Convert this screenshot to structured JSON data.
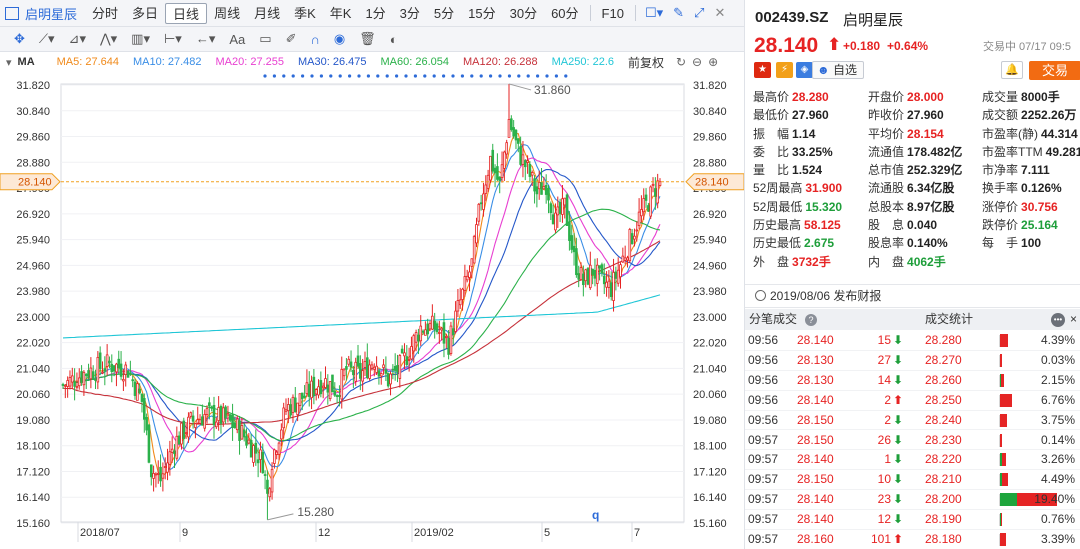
{
  "toolbar": {
    "stock_name": "启明星辰",
    "periods": [
      "分时",
      "多日",
      "日线",
      "周线",
      "月线",
      "季K",
      "年K",
      "1分",
      "3分",
      "5分",
      "15分",
      "30分",
      "60分"
    ],
    "active_period": "日线",
    "f10": "F10",
    "draw_tools": [
      "十字",
      "线段",
      "画线",
      "折线",
      "形态",
      "区间",
      "撤销",
      "Aa",
      "注释",
      "笔",
      "磁铁",
      "显示",
      "删除",
      "开关"
    ]
  },
  "ma_legend": {
    "label": "MA",
    "items": [
      {
        "text": "MA5: 27.644",
        "color": "#f08a1b"
      },
      {
        "text": "MA10: 27.482",
        "color": "#3a8ee6"
      },
      {
        "text": "MA20: 27.255",
        "color": "#e83fd1"
      },
      {
        "text": "MA30: 26.475",
        "color": "#2457c9"
      },
      {
        "text": "MA60: 26.054",
        "color": "#2bb14a"
      },
      {
        "text": "MA120: 26.288",
        "color": "#c6313a"
      },
      {
        "text": "MA250: 22.6",
        "color": "#21c6d6"
      }
    ],
    "adjust": "前复权"
  },
  "chart_data": {
    "type": "candlestick",
    "y_ticks": [
      "31.820",
      "30.840",
      "29.860",
      "28.880",
      "27.900",
      "26.920",
      "25.940",
      "24.960",
      "23.980",
      "23.000",
      "22.020",
      "21.040",
      "20.060",
      "19.080",
      "18.100",
      "17.120",
      "16.140",
      "15.160"
    ],
    "ylim": [
      15.16,
      31.82
    ],
    "x_labels": [
      "2018/07",
      "9",
      "12",
      "2019/02",
      "5",
      "7"
    ],
    "current_price_tag": "28.140",
    "high_annotation": "31.860",
    "low_annotation": "15.280",
    "marker_q": "q",
    "colors": {
      "up": "#e62323",
      "down": "#2bb14a",
      "dashed": "#f0a020"
    }
  },
  "quote": {
    "code": "002439.SZ",
    "name": "启明星辰",
    "price": "28.140",
    "arrow": "⬆",
    "change": "+0.180",
    "change_pct": "+0.64%",
    "trade_time": "交易中 07/17 09:5",
    "add_watch": "自选",
    "trade_btn": "交易"
  },
  "stats": [
    [
      {
        "k": "最高价",
        "v": "28.280",
        "c": "up"
      },
      {
        "k": "开盘价",
        "v": "28.000",
        "c": "up"
      },
      {
        "k": "成交量",
        "v": "8000手",
        "c": "nt"
      }
    ],
    [
      {
        "k": "最低价",
        "v": "27.960",
        "c": "nt"
      },
      {
        "k": "昨收价",
        "v": "27.960",
        "c": "nt"
      },
      {
        "k": "成交额",
        "v": "2252.26万",
        "c": "nt"
      }
    ],
    [
      {
        "k": "振　幅",
        "v": "1.14",
        "c": "nt"
      },
      {
        "k": "平均价",
        "v": "28.154",
        "c": "up"
      },
      {
        "k": "市盈率(静)",
        "v": "44.314",
        "c": "nt"
      }
    ],
    [
      {
        "k": "委　比",
        "v": "33.25%",
        "c": "nt"
      },
      {
        "k": "流通值",
        "v": "178.482亿",
        "c": "nt"
      },
      {
        "k": "市盈率TTM",
        "v": "49.281",
        "c": "nt"
      }
    ],
    [
      {
        "k": "量　比",
        "v": "1.524",
        "c": "nt"
      },
      {
        "k": "总市值",
        "v": "252.329亿",
        "c": "nt"
      },
      {
        "k": "市净率",
        "v": "7.111",
        "c": "nt"
      }
    ],
    [
      {
        "k": "52周最高",
        "v": "31.900",
        "c": "up"
      },
      {
        "k": "流通股",
        "v": "6.34亿股",
        "c": "nt"
      },
      {
        "k": "换手率",
        "v": "0.126%",
        "c": "nt"
      }
    ],
    [
      {
        "k": "52周最低",
        "v": "15.320",
        "c": "dn"
      },
      {
        "k": "总股本",
        "v": "8.97亿股",
        "c": "nt"
      },
      {
        "k": "涨停价",
        "v": "30.756",
        "c": "up"
      }
    ],
    [
      {
        "k": "历史最高",
        "v": "58.125",
        "c": "up"
      },
      {
        "k": "股　息",
        "v": "0.040",
        "c": "nt"
      },
      {
        "k": "跌停价",
        "v": "25.164",
        "c": "dn"
      }
    ],
    [
      {
        "k": "历史最低",
        "v": "2.675",
        "c": "dn"
      },
      {
        "k": "股息率",
        "v": "0.140%",
        "c": "nt"
      },
      {
        "k": "每　手",
        "v": "100",
        "c": "nt"
      }
    ],
    [
      {
        "k": "外　盘",
        "v": "3732手",
        "c": "up"
      },
      {
        "k": "内　盘",
        "v": "4062手",
        "c": "dn"
      },
      {
        "k": "",
        "v": "",
        "c": "nt"
      }
    ]
  ],
  "announcement": "2019/08/06 发布财报",
  "tables": {
    "left_header": "分笔成交",
    "right_header": "成交统计",
    "close": "×"
  },
  "ticks": [
    {
      "time": "09:56",
      "price": "28.140",
      "vol": "15",
      "dir": "down",
      "sp": "28.280",
      "pct": "4.39%",
      "bar": 0.1,
      "bar_color": "red"
    },
    {
      "time": "09:56",
      "price": "28.130",
      "vol": "27",
      "dir": "down",
      "sp": "28.270",
      "pct": "0.03%",
      "bar": 0.0,
      "bar_color": "red"
    },
    {
      "time": "09:56",
      "price": "28.130",
      "vol": "14",
      "dir": "down",
      "sp": "28.260",
      "pct": "2.15%",
      "bar": 0.05,
      "bar_color": "mix"
    },
    {
      "time": "09:56",
      "price": "28.140",
      "vol": "2",
      "dir": "up",
      "sp": "28.250",
      "pct": "6.76%",
      "bar": 0.16,
      "bar_color": "red"
    },
    {
      "time": "09:56",
      "price": "28.150",
      "vol": "2",
      "dir": "down",
      "sp": "28.240",
      "pct": "3.75%",
      "bar": 0.09,
      "bar_color": "red"
    },
    {
      "time": "09:57",
      "price": "28.150",
      "vol": "26",
      "dir": "down",
      "sp": "28.230",
      "pct": "0.14%",
      "bar": 0.0,
      "bar_color": "red"
    },
    {
      "time": "09:57",
      "price": "28.140",
      "vol": "1",
      "dir": "down",
      "sp": "28.220",
      "pct": "3.26%",
      "bar": 0.08,
      "bar_color": "mix"
    },
    {
      "time": "09:57",
      "price": "28.150",
      "vol": "10",
      "dir": "down",
      "sp": "28.210",
      "pct": "4.49%",
      "bar": 0.1,
      "bar_color": "mix"
    },
    {
      "time": "09:57",
      "price": "28.140",
      "vol": "23",
      "dir": "down",
      "sp": "28.200",
      "pct": "19.40%",
      "bar": 0.75,
      "bar_color": "mix"
    },
    {
      "time": "09:57",
      "price": "28.140",
      "vol": "12",
      "dir": "down",
      "sp": "28.190",
      "pct": "0.76%",
      "bar": 0.02,
      "bar_color": "mix"
    },
    {
      "time": "09:57",
      "price": "28.160",
      "vol": "101",
      "dir": "up",
      "sp": "28.180",
      "pct": "3.39%",
      "bar": 0.08,
      "bar_color": "red"
    }
  ]
}
